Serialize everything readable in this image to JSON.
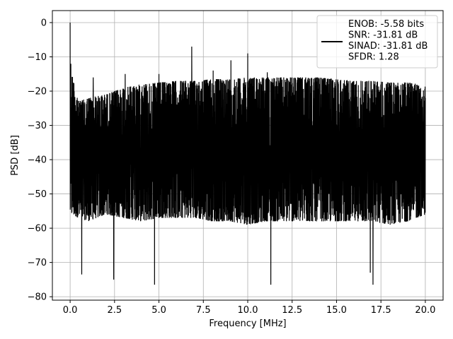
{
  "chart_data": {
    "type": "line",
    "title": "",
    "xlabel": "Frequency [MHz]",
    "ylabel": "PSD [dB]",
    "xlim": [
      -1.0,
      21.0
    ],
    "ylim": [
      -81,
      3.5
    ],
    "xticks": [
      0.0,
      2.5,
      5.0,
      7.5,
      10.0,
      12.5,
      15.0,
      17.5,
      20.0
    ],
    "xtick_labels": [
      "0.0",
      "2.5",
      "5.0",
      "7.5",
      "10.0",
      "12.5",
      "15.0",
      "17.5",
      "20.0"
    ],
    "yticks": [
      0,
      -10,
      -20,
      -30,
      -40,
      -50,
      -60,
      -70,
      -80
    ],
    "ytick_labels": [
      "0",
      "−10",
      "−20",
      "−30",
      "−40",
      "−50",
      "−60",
      "−70",
      "−80"
    ],
    "grid": true,
    "legend_position": "top-right",
    "line_color": "#000000",
    "series": [
      {
        "name": "ENOB: -5.58 bits\nSNR: -31.81 dB\nSINAD: -31.81 dB\nSFDR: 1.28",
        "x_range": [
          0.0,
          20.0
        ],
        "upper_envelope": {
          "x": [
            0.0,
            0.05,
            0.5,
            1.0,
            2.0,
            3.0,
            4.0,
            5.0,
            6.0,
            7.0,
            8.0,
            9.0,
            10.0,
            11.0,
            12.0,
            13.0,
            14.0,
            15.0,
            16.0,
            17.0,
            18.0,
            19.0,
            20.0
          ],
          "y": [
            -21,
            -13,
            -22,
            -21,
            -20,
            -18,
            -17,
            -16.5,
            -16,
            -16,
            -15.5,
            -15.5,
            -15,
            -15,
            -15,
            -15,
            -15,
            -15.5,
            -16,
            -16,
            -16.5,
            -16.5,
            -17
          ]
        },
        "lower_envelope": {
          "x": [
            0.0,
            1.0,
            2.0,
            3.0,
            4.0,
            5.0,
            6.0,
            7.0,
            8.0,
            9.0,
            10.0,
            11.0,
            12.0,
            13.0,
            14.0,
            15.0,
            16.0,
            17.0,
            18.0,
            19.0,
            20.0
          ],
          "y": [
            -60,
            -62,
            -60,
            -61,
            -62,
            -61,
            -61,
            -61,
            -62,
            -62,
            -63,
            -62,
            -62,
            -62,
            -62,
            -62,
            -62,
            -62,
            -63,
            -62,
            -60
          ]
        },
        "peaks": [
          {
            "x": 0.0,
            "y": 0.0
          },
          {
            "x": 0.04,
            "y": -12.0
          },
          {
            "x": 1.3,
            "y": -16.0
          },
          {
            "x": 3.1,
            "y": -15.0
          },
          {
            "x": 5.0,
            "y": -15.0
          },
          {
            "x": 6.85,
            "y": -7.0
          },
          {
            "x": 8.05,
            "y": -14.0
          },
          {
            "x": 9.05,
            "y": -11.0
          },
          {
            "x": 10.0,
            "y": -9.0
          },
          {
            "x": 11.1,
            "y": -14.5
          }
        ],
        "troughs": [
          {
            "x": 0.65,
            "y": -73.5
          },
          {
            "x": 2.45,
            "y": -75.0
          },
          {
            "x": 4.75,
            "y": -76.5
          },
          {
            "x": 11.3,
            "y": -76.5
          },
          {
            "x": 16.9,
            "y": -73.0
          },
          {
            "x": 17.05,
            "y": -76.5
          }
        ]
      }
    ]
  }
}
